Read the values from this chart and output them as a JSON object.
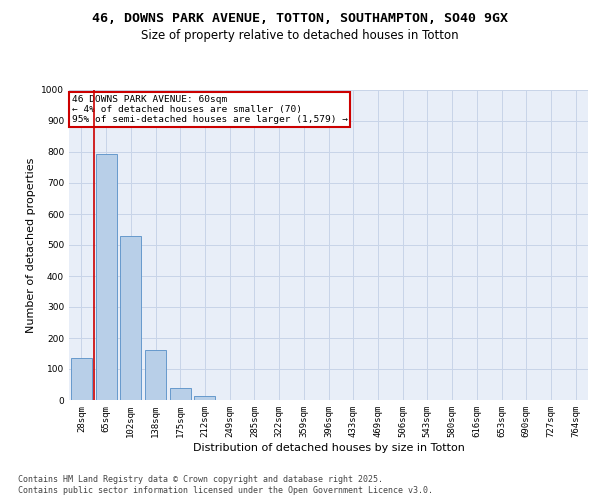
{
  "title_line1": "46, DOWNS PARK AVENUE, TOTTON, SOUTHAMPTON, SO40 9GX",
  "title_line2": "Size of property relative to detached houses in Totton",
  "xlabel": "Distribution of detached houses by size in Totton",
  "ylabel": "Number of detached properties",
  "categories": [
    "28sqm",
    "65sqm",
    "102sqm",
    "138sqm",
    "175sqm",
    "212sqm",
    "249sqm",
    "285sqm",
    "322sqm",
    "359sqm",
    "396sqm",
    "433sqm",
    "469sqm",
    "506sqm",
    "543sqm",
    "580sqm",
    "616sqm",
    "653sqm",
    "690sqm",
    "727sqm",
    "764sqm"
  ],
  "values": [
    135,
    795,
    530,
    160,
    38,
    13,
    0,
    0,
    0,
    0,
    0,
    0,
    0,
    0,
    0,
    0,
    0,
    0,
    0,
    0,
    0
  ],
  "bar_color": "#b8cfe8",
  "bar_edge_color": "#6699cc",
  "vline_color": "#cc0000",
  "vline_x": 0.5,
  "annotation_text": "46 DOWNS PARK AVENUE: 60sqm\n← 4% of detached houses are smaller (70)\n95% of semi-detached houses are larger (1,579) →",
  "annotation_box_edgecolor": "#cc0000",
  "annotation_facecolor": "white",
  "ylim": [
    0,
    1000
  ],
  "yticks": [
    0,
    100,
    200,
    300,
    400,
    500,
    600,
    700,
    800,
    900,
    1000
  ],
  "grid_color": "#c8d4e8",
  "bg_color": "#e8eef8",
  "footer_line1": "Contains HM Land Registry data © Crown copyright and database right 2025.",
  "footer_line2": "Contains public sector information licensed under the Open Government Licence v3.0.",
  "title_fontsize": 9.5,
  "subtitle_fontsize": 8.5,
  "ylabel_fontsize": 8,
  "xlabel_fontsize": 8,
  "tick_fontsize": 6.5,
  "annotation_fontsize": 6.8,
  "footer_fontsize": 6
}
